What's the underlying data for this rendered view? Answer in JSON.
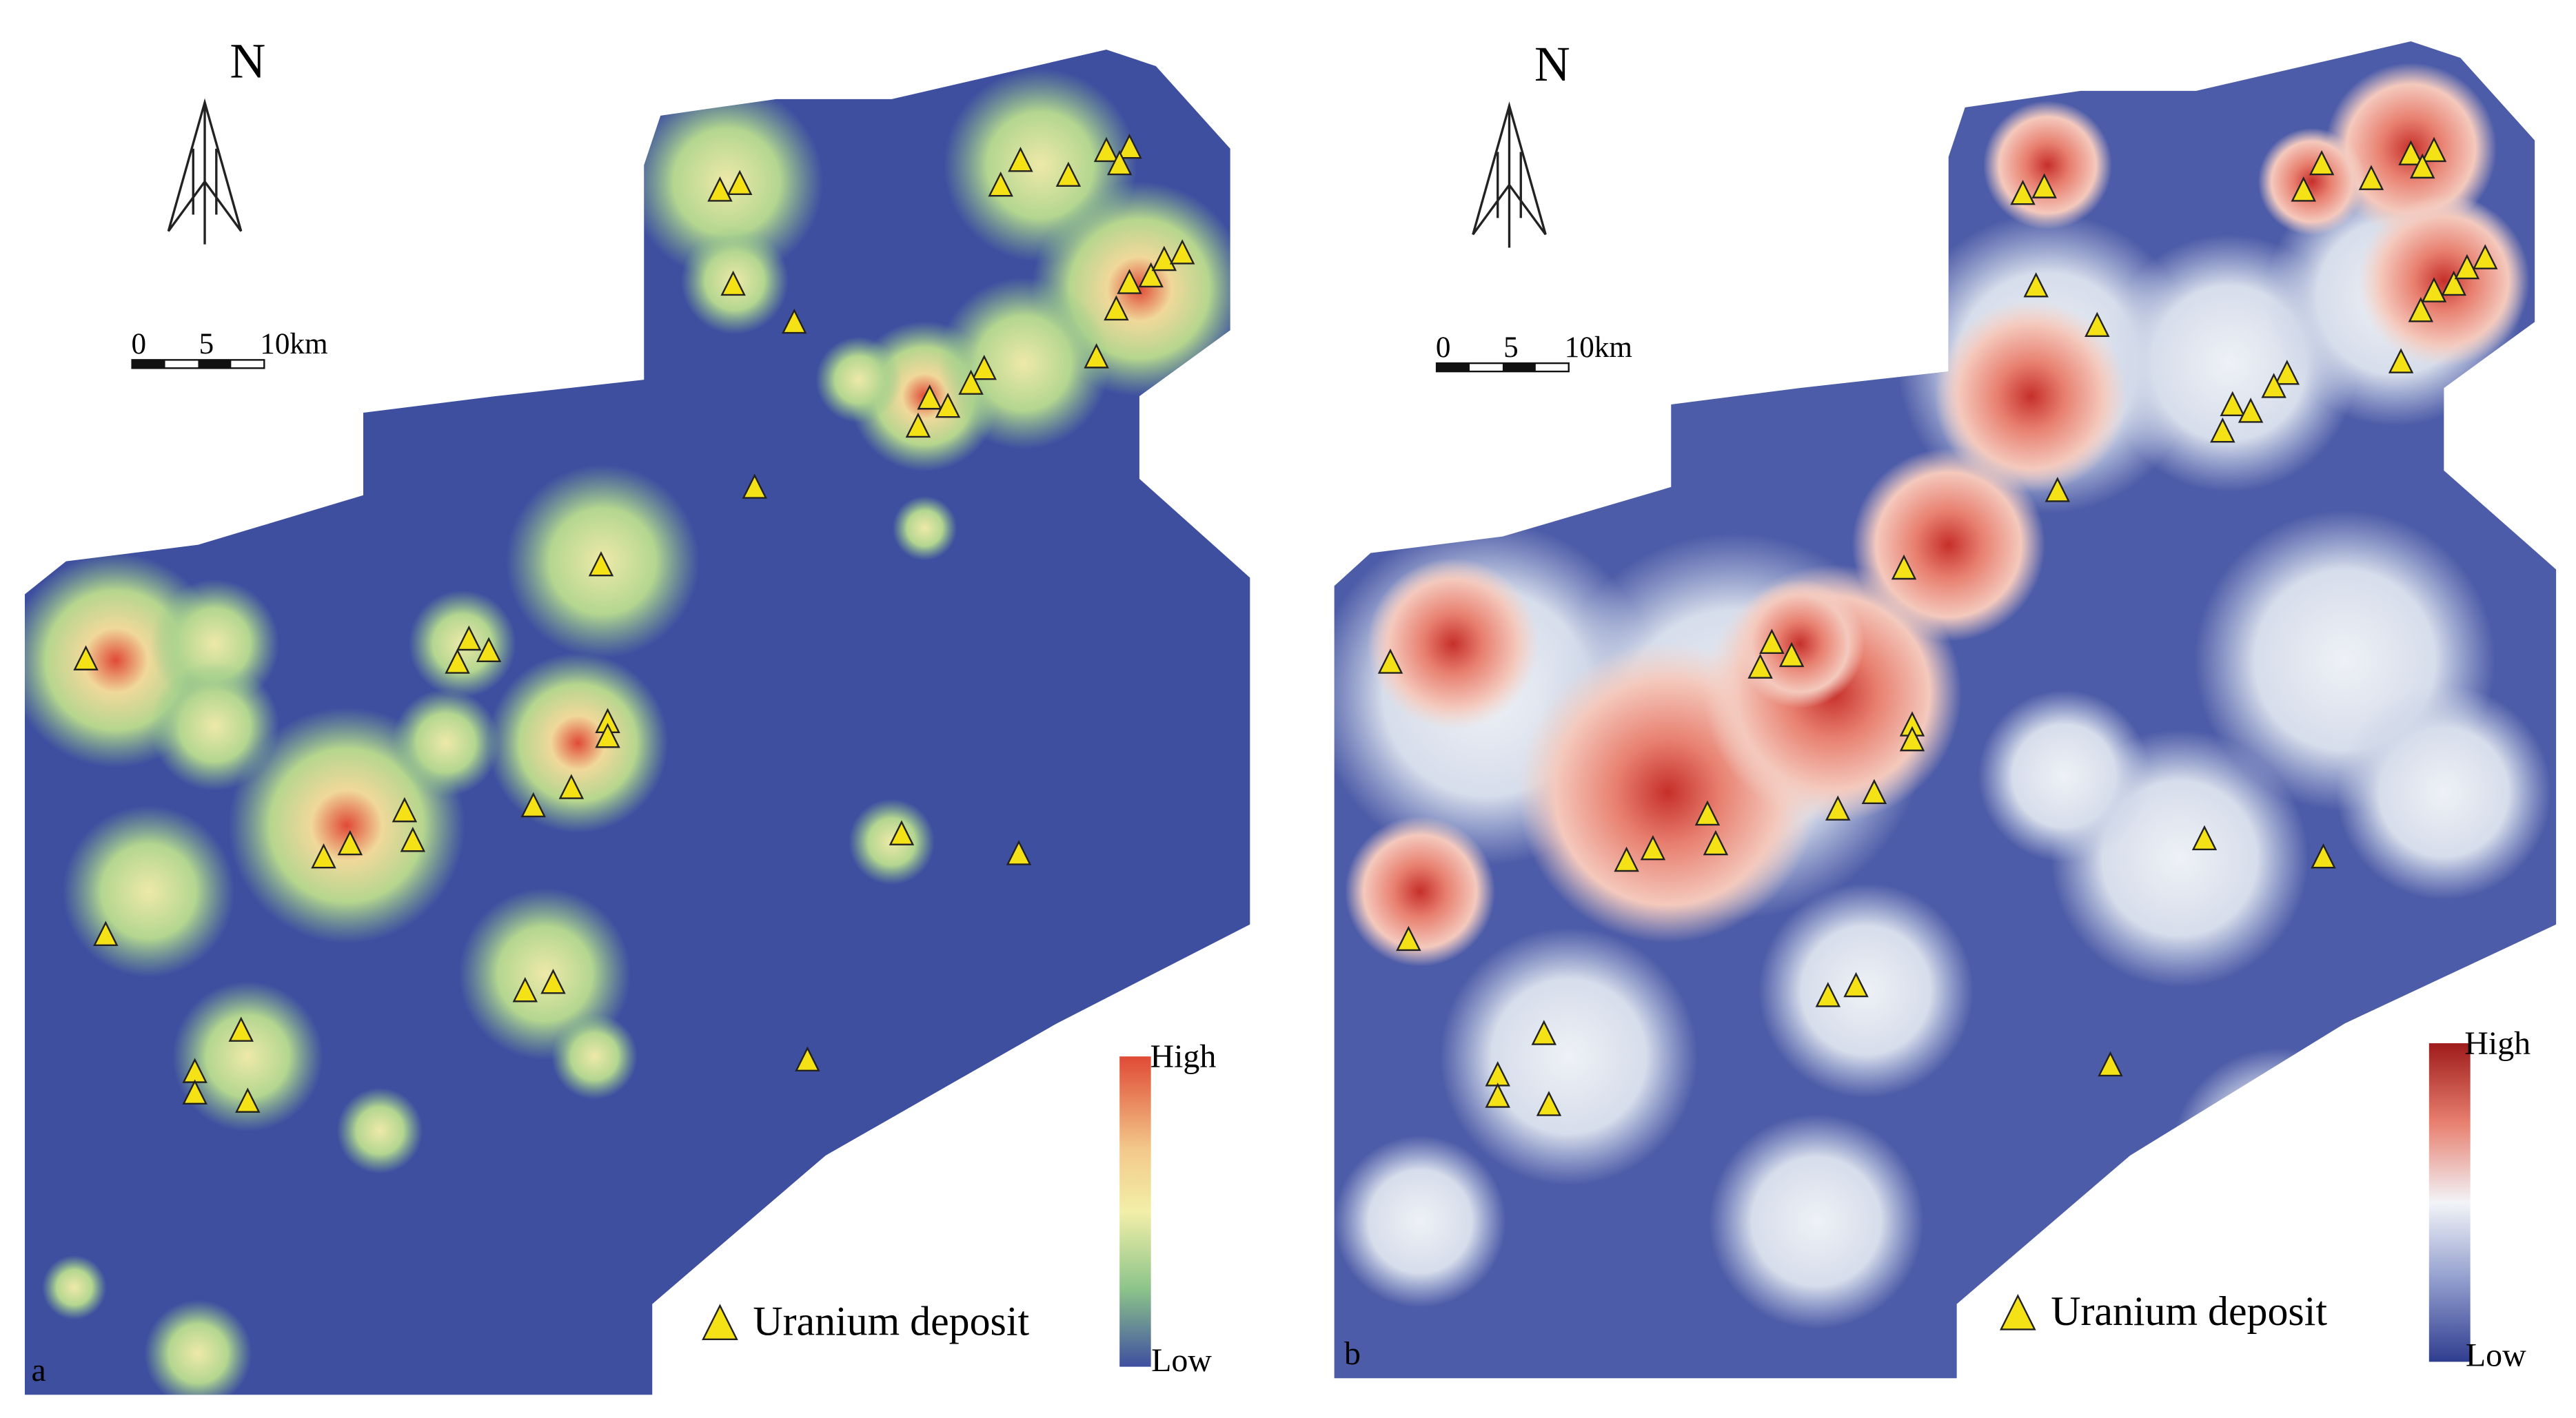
{
  "panels": [
    {
      "label": "a",
      "north": "N",
      "scale": [
        "0",
        "5",
        "10km"
      ],
      "legend": {
        "high": "High",
        "low": "Low",
        "deposit": "Uranium deposit"
      }
    },
    {
      "label": "b",
      "north": "N",
      "scale": [
        "0",
        "5",
        "10km"
      ],
      "legend": {
        "high": "High",
        "low": "Low",
        "deposit": "Uranium deposit"
      }
    }
  ]
}
